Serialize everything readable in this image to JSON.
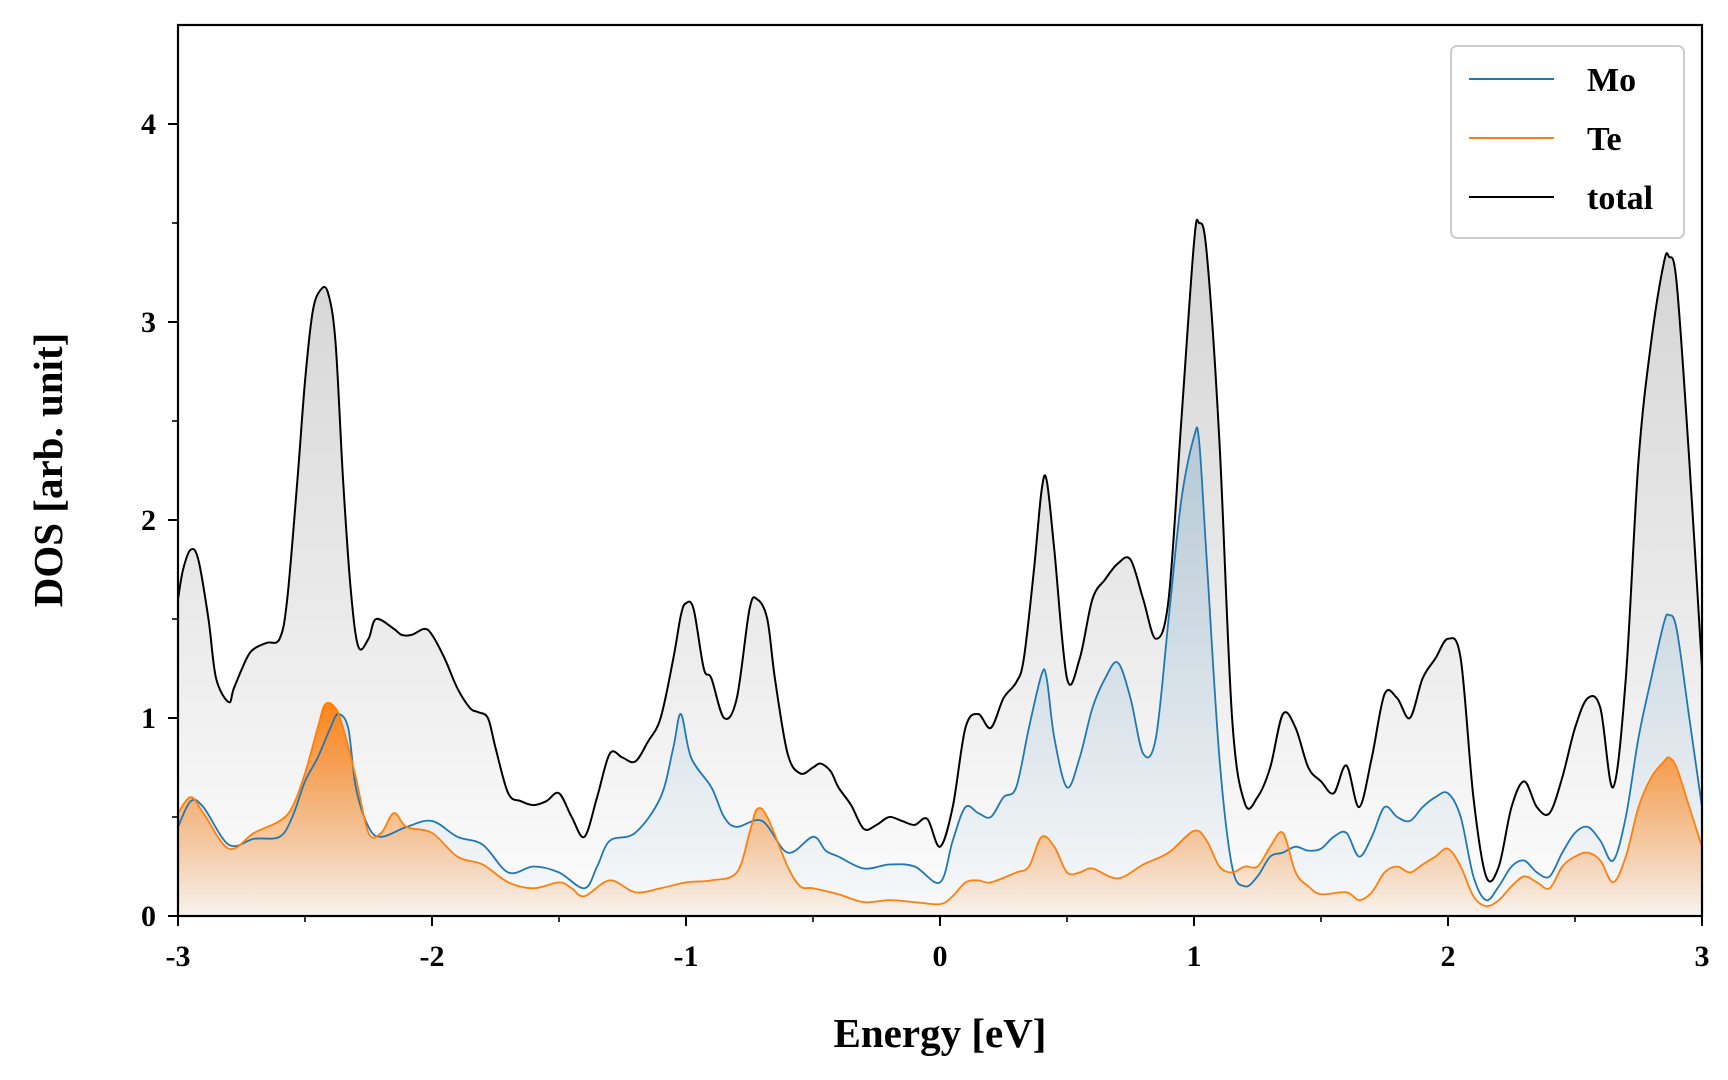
{
  "chart_data": {
    "type": "line",
    "xlabel": "Energy [eV]",
    "ylabel": "DOS [arb. unit]",
    "xlim": [
      -3,
      3
    ],
    "ylim": [
      0,
      4.5
    ],
    "xticks": [
      -3,
      -2,
      -1,
      0,
      1,
      2,
      3
    ],
    "yticks": [
      0,
      1,
      2,
      3,
      4
    ],
    "xtick_labels": [
      "-3",
      "-2",
      "-1",
      "0",
      "1",
      "2",
      "3"
    ],
    "ytick_labels": [
      "0",
      "1",
      "2",
      "3",
      "4"
    ],
    "legend": {
      "position": "top-right"
    },
    "series": [
      {
        "name": "Mo",
        "color": "#1f77b4",
        "fill": "gradient",
        "x": [
          -3.0,
          -2.95,
          -2.9,
          -2.8,
          -2.7,
          -2.6,
          -2.55,
          -2.5,
          -2.45,
          -2.4,
          -2.37,
          -2.33,
          -2.3,
          -2.25,
          -2.2,
          -2.1,
          -2.0,
          -1.9,
          -1.8,
          -1.7,
          -1.6,
          -1.5,
          -1.4,
          -1.35,
          -1.3,
          -1.2,
          -1.1,
          -1.05,
          -1.02,
          -0.98,
          -0.9,
          -0.85,
          -0.8,
          -0.7,
          -0.6,
          -0.5,
          -0.45,
          -0.4,
          -0.3,
          -0.2,
          -0.1,
          0.0,
          0.05,
          0.1,
          0.15,
          0.2,
          0.25,
          0.3,
          0.35,
          0.4,
          0.42,
          0.45,
          0.5,
          0.55,
          0.6,
          0.65,
          0.7,
          0.75,
          0.8,
          0.85,
          0.9,
          0.95,
          1.0,
          1.02,
          1.05,
          1.1,
          1.15,
          1.2,
          1.25,
          1.3,
          1.35,
          1.4,
          1.45,
          1.5,
          1.55,
          1.6,
          1.65,
          1.7,
          1.75,
          1.8,
          1.85,
          1.9,
          1.95,
          2.0,
          2.05,
          2.1,
          2.15,
          2.2,
          2.25,
          2.3,
          2.35,
          2.4,
          2.45,
          2.5,
          2.55,
          2.6,
          2.65,
          2.7,
          2.75,
          2.8,
          2.85,
          2.87,
          2.9,
          2.95,
          3.0
        ],
        "values": [
          0.45,
          0.58,
          0.55,
          0.36,
          0.39,
          0.4,
          0.5,
          0.68,
          0.8,
          0.95,
          1.02,
          0.95,
          0.65,
          0.45,
          0.4,
          0.45,
          0.48,
          0.4,
          0.36,
          0.22,
          0.25,
          0.22,
          0.14,
          0.25,
          0.38,
          0.42,
          0.6,
          0.85,
          1.02,
          0.8,
          0.65,
          0.5,
          0.45,
          0.48,
          0.32,
          0.4,
          0.33,
          0.3,
          0.24,
          0.26,
          0.25,
          0.17,
          0.38,
          0.55,
          0.52,
          0.5,
          0.6,
          0.65,
          0.95,
          1.22,
          1.2,
          0.9,
          0.65,
          0.8,
          1.05,
          1.2,
          1.28,
          1.1,
          0.82,
          0.9,
          1.5,
          2.1,
          2.42,
          2.4,
          1.8,
          0.8,
          0.25,
          0.15,
          0.2,
          0.3,
          0.32,
          0.35,
          0.33,
          0.34,
          0.4,
          0.42,
          0.3,
          0.4,
          0.55,
          0.5,
          0.48,
          0.55,
          0.6,
          0.62,
          0.5,
          0.2,
          0.08,
          0.15,
          0.25,
          0.28,
          0.22,
          0.2,
          0.32,
          0.42,
          0.45,
          0.38,
          0.28,
          0.5,
          0.9,
          1.2,
          1.48,
          1.52,
          1.45,
          1.0,
          0.55
        ]
      },
      {
        "name": "Te",
        "color": "#ff7f0e",
        "fill": "gradient",
        "x": [
          -3.0,
          -2.95,
          -2.9,
          -2.8,
          -2.7,
          -2.6,
          -2.55,
          -2.5,
          -2.45,
          -2.42,
          -2.38,
          -2.35,
          -2.3,
          -2.25,
          -2.2,
          -2.15,
          -2.1,
          -2.0,
          -1.9,
          -1.8,
          -1.7,
          -1.6,
          -1.5,
          -1.45,
          -1.4,
          -1.3,
          -1.2,
          -1.1,
          -1.0,
          -0.9,
          -0.8,
          -0.75,
          -0.72,
          -0.68,
          -0.6,
          -0.55,
          -0.5,
          -0.4,
          -0.3,
          -0.2,
          -0.1,
          0.0,
          0.05,
          0.1,
          0.15,
          0.2,
          0.3,
          0.35,
          0.4,
          0.45,
          0.5,
          0.55,
          0.6,
          0.7,
          0.8,
          0.9,
          1.0,
          1.05,
          1.1,
          1.15,
          1.2,
          1.25,
          1.3,
          1.35,
          1.4,
          1.45,
          1.5,
          1.6,
          1.65,
          1.7,
          1.75,
          1.8,
          1.85,
          1.9,
          1.95,
          2.0,
          2.05,
          2.1,
          2.15,
          2.2,
          2.25,
          2.3,
          2.35,
          2.4,
          2.45,
          2.5,
          2.55,
          2.6,
          2.65,
          2.7,
          2.75,
          2.8,
          2.85,
          2.87,
          2.9,
          2.95,
          3.0
        ],
        "values": [
          0.52,
          0.6,
          0.52,
          0.34,
          0.42,
          0.48,
          0.55,
          0.72,
          0.95,
          1.07,
          1.05,
          0.95,
          0.7,
          0.42,
          0.42,
          0.52,
          0.45,
          0.42,
          0.3,
          0.26,
          0.17,
          0.14,
          0.17,
          0.14,
          0.1,
          0.18,
          0.12,
          0.14,
          0.17,
          0.18,
          0.22,
          0.42,
          0.54,
          0.5,
          0.25,
          0.15,
          0.14,
          0.11,
          0.07,
          0.08,
          0.07,
          0.06,
          0.1,
          0.17,
          0.18,
          0.17,
          0.22,
          0.25,
          0.4,
          0.35,
          0.22,
          0.22,
          0.24,
          0.19,
          0.26,
          0.32,
          0.43,
          0.38,
          0.25,
          0.22,
          0.25,
          0.25,
          0.35,
          0.42,
          0.22,
          0.15,
          0.11,
          0.12,
          0.08,
          0.12,
          0.22,
          0.25,
          0.22,
          0.26,
          0.3,
          0.34,
          0.25,
          0.1,
          0.05,
          0.08,
          0.15,
          0.2,
          0.17,
          0.14,
          0.25,
          0.3,
          0.32,
          0.28,
          0.17,
          0.3,
          0.55,
          0.7,
          0.78,
          0.8,
          0.75,
          0.55,
          0.35
        ]
      },
      {
        "name": "total",
        "color": "#000000",
        "fill": "gradient",
        "x": [
          -3.0,
          -2.98,
          -2.95,
          -2.92,
          -2.88,
          -2.85,
          -2.8,
          -2.78,
          -2.73,
          -2.7,
          -2.65,
          -2.6,
          -2.57,
          -2.53,
          -2.5,
          -2.47,
          -2.44,
          -2.41,
          -2.38,
          -2.35,
          -2.32,
          -2.29,
          -2.25,
          -2.22,
          -2.15,
          -2.12,
          -2.08,
          -2.03,
          -2.0,
          -1.95,
          -1.9,
          -1.85,
          -1.82,
          -1.78,
          -1.75,
          -1.7,
          -1.65,
          -1.6,
          -1.55,
          -1.5,
          -1.45,
          -1.4,
          -1.35,
          -1.3,
          -1.25,
          -1.2,
          -1.15,
          -1.1,
          -1.05,
          -1.02,
          -1.0,
          -0.97,
          -0.93,
          -0.9,
          -0.85,
          -0.8,
          -0.75,
          -0.72,
          -0.68,
          -0.65,
          -0.6,
          -0.55,
          -0.5,
          -0.47,
          -0.43,
          -0.4,
          -0.35,
          -0.3,
          -0.25,
          -0.2,
          -0.15,
          -0.1,
          -0.05,
          0.0,
          0.05,
          0.1,
          0.15,
          0.2,
          0.25,
          0.3,
          0.33,
          0.37,
          0.4,
          0.42,
          0.45,
          0.5,
          0.55,
          0.6,
          0.65,
          0.7,
          0.75,
          0.8,
          0.85,
          0.9,
          0.95,
          1.0,
          1.02,
          1.05,
          1.1,
          1.15,
          1.2,
          1.25,
          1.3,
          1.35,
          1.4,
          1.45,
          1.5,
          1.55,
          1.6,
          1.65,
          1.7,
          1.75,
          1.8,
          1.85,
          1.9,
          1.95,
          2.0,
          2.05,
          2.1,
          2.15,
          2.2,
          2.25,
          2.3,
          2.35,
          2.4,
          2.45,
          2.5,
          2.55,
          2.6,
          2.65,
          2.7,
          2.75,
          2.8,
          2.85,
          2.87,
          2.9,
          2.95,
          3.0
        ],
        "values": [
          1.6,
          1.75,
          1.85,
          1.8,
          1.5,
          1.2,
          1.08,
          1.15,
          1.3,
          1.35,
          1.38,
          1.4,
          1.6,
          2.2,
          2.7,
          3.05,
          3.16,
          3.15,
          2.9,
          2.2,
          1.65,
          1.36,
          1.4,
          1.5,
          1.45,
          1.42,
          1.42,
          1.45,
          1.42,
          1.3,
          1.15,
          1.05,
          1.03,
          1.0,
          0.85,
          0.62,
          0.58,
          0.56,
          0.58,
          0.62,
          0.5,
          0.4,
          0.6,
          0.82,
          0.8,
          0.78,
          0.88,
          1.0,
          1.3,
          1.52,
          1.58,
          1.55,
          1.25,
          1.2,
          1.0,
          1.1,
          1.55,
          1.6,
          1.5,
          1.2,
          0.82,
          0.72,
          0.75,
          0.77,
          0.73,
          0.65,
          0.56,
          0.44,
          0.46,
          0.5,
          0.48,
          0.46,
          0.49,
          0.35,
          0.55,
          0.95,
          1.02,
          0.95,
          1.1,
          1.18,
          1.3,
          1.75,
          2.15,
          2.2,
          1.85,
          1.2,
          1.3,
          1.6,
          1.7,
          1.78,
          1.8,
          1.6,
          1.4,
          1.6,
          2.5,
          3.4,
          3.5,
          3.35,
          2.4,
          1.0,
          0.57,
          0.6,
          0.75,
          1.02,
          0.95,
          0.75,
          0.68,
          0.62,
          0.76,
          0.55,
          0.8,
          1.12,
          1.1,
          1.0,
          1.2,
          1.3,
          1.4,
          1.3,
          0.6,
          0.2,
          0.25,
          0.55,
          0.68,
          0.55,
          0.52,
          0.7,
          0.95,
          1.1,
          1.05,
          0.65,
          1.2,
          2.3,
          2.9,
          3.3,
          3.33,
          3.2,
          2.3,
          1.25
        ]
      }
    ]
  }
}
